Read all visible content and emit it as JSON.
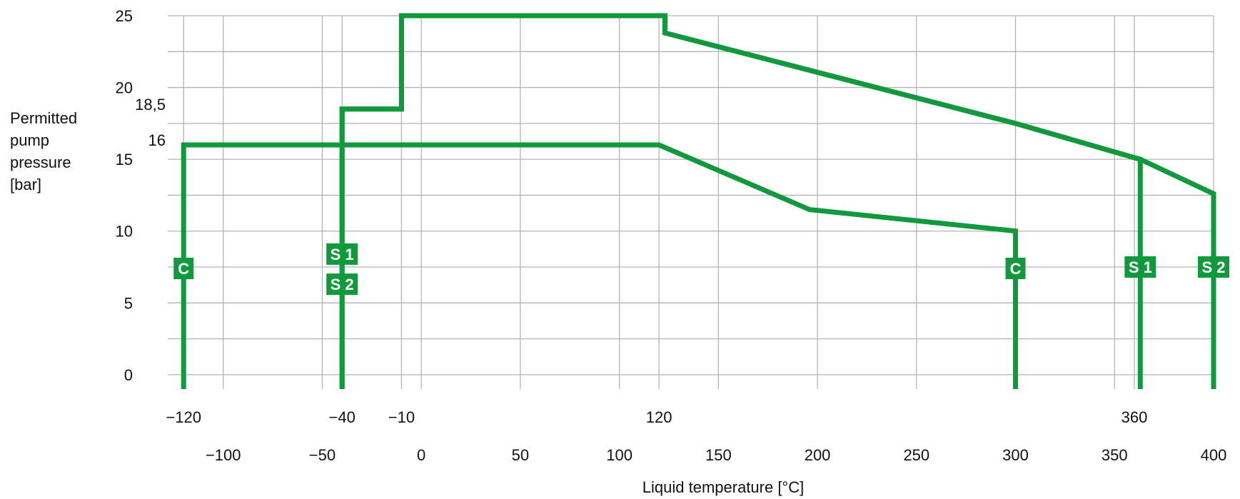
{
  "chart_data": {
    "type": "line",
    "xlabel": "Liquid temperature [°C]",
    "ylabel": "Permitted\npump\npressure\n[bar]",
    "xlim": [
      -128,
      400
    ],
    "ylim": [
      -1,
      25
    ],
    "grid": true,
    "colors": {
      "series": "#12993e",
      "grid": "#b3b3b3"
    },
    "x_ticks_major": [
      "−100",
      "−50",
      "0",
      "50",
      "100",
      "150",
      "200",
      "250",
      "300",
      "350",
      "400"
    ],
    "x_ticks_major_values": [
      -100,
      -50,
      0,
      50,
      100,
      150,
      200,
      250,
      300,
      350,
      400
    ],
    "x_ticks_special": [
      "−120",
      "−40",
      "−10",
      "120",
      "360"
    ],
    "x_ticks_special_values": [
      -120,
      -40,
      -10,
      120,
      360
    ],
    "y_ticks": [
      "0",
      "5",
      "10",
      "15",
      "20",
      "25"
    ],
    "y_ticks_values": [
      0,
      5,
      10,
      15,
      20,
      25
    ],
    "y_ticks_special": [
      "18,5",
      "16"
    ],
    "y_ticks_special_values": [
      18.5,
      16
    ],
    "series": [
      {
        "name": "C",
        "x": [
          -120,
          -120,
          120,
          196,
          300,
          300
        ],
        "y": [
          -1,
          16,
          16,
          11.5,
          10,
          -1
        ],
        "labels": [
          {
            "text": "C",
            "x": -120,
            "y": 7.4
          },
          {
            "text": "C",
            "x": 300,
            "y": 7.4
          }
        ]
      },
      {
        "name": "S 1",
        "x": [
          -40,
          -40,
          -10,
          -10,
          123,
          123,
          300,
          363,
          363
        ],
        "y": [
          -1,
          18.5,
          18.5,
          25,
          25,
          23.8,
          17.5,
          15,
          -1
        ],
        "labels": [
          {
            "text": "S 1",
            "x": -40,
            "y": 8.4
          },
          {
            "text": "S 1",
            "x": 363,
            "y": 7.5
          }
        ]
      },
      {
        "name": "S 2",
        "x": [
          -40,
          -40,
          -10,
          -10,
          123,
          123,
          300,
          363,
          400,
          400
        ],
        "y": [
          -1,
          18.5,
          18.5,
          25,
          25,
          23.8,
          17.5,
          15,
          12.6,
          -1
        ],
        "labels": [
          {
            "text": "S 2",
            "x": -40,
            "y": 6.3
          },
          {
            "text": "S 2",
            "x": 400,
            "y": 7.5
          }
        ]
      }
    ]
  }
}
